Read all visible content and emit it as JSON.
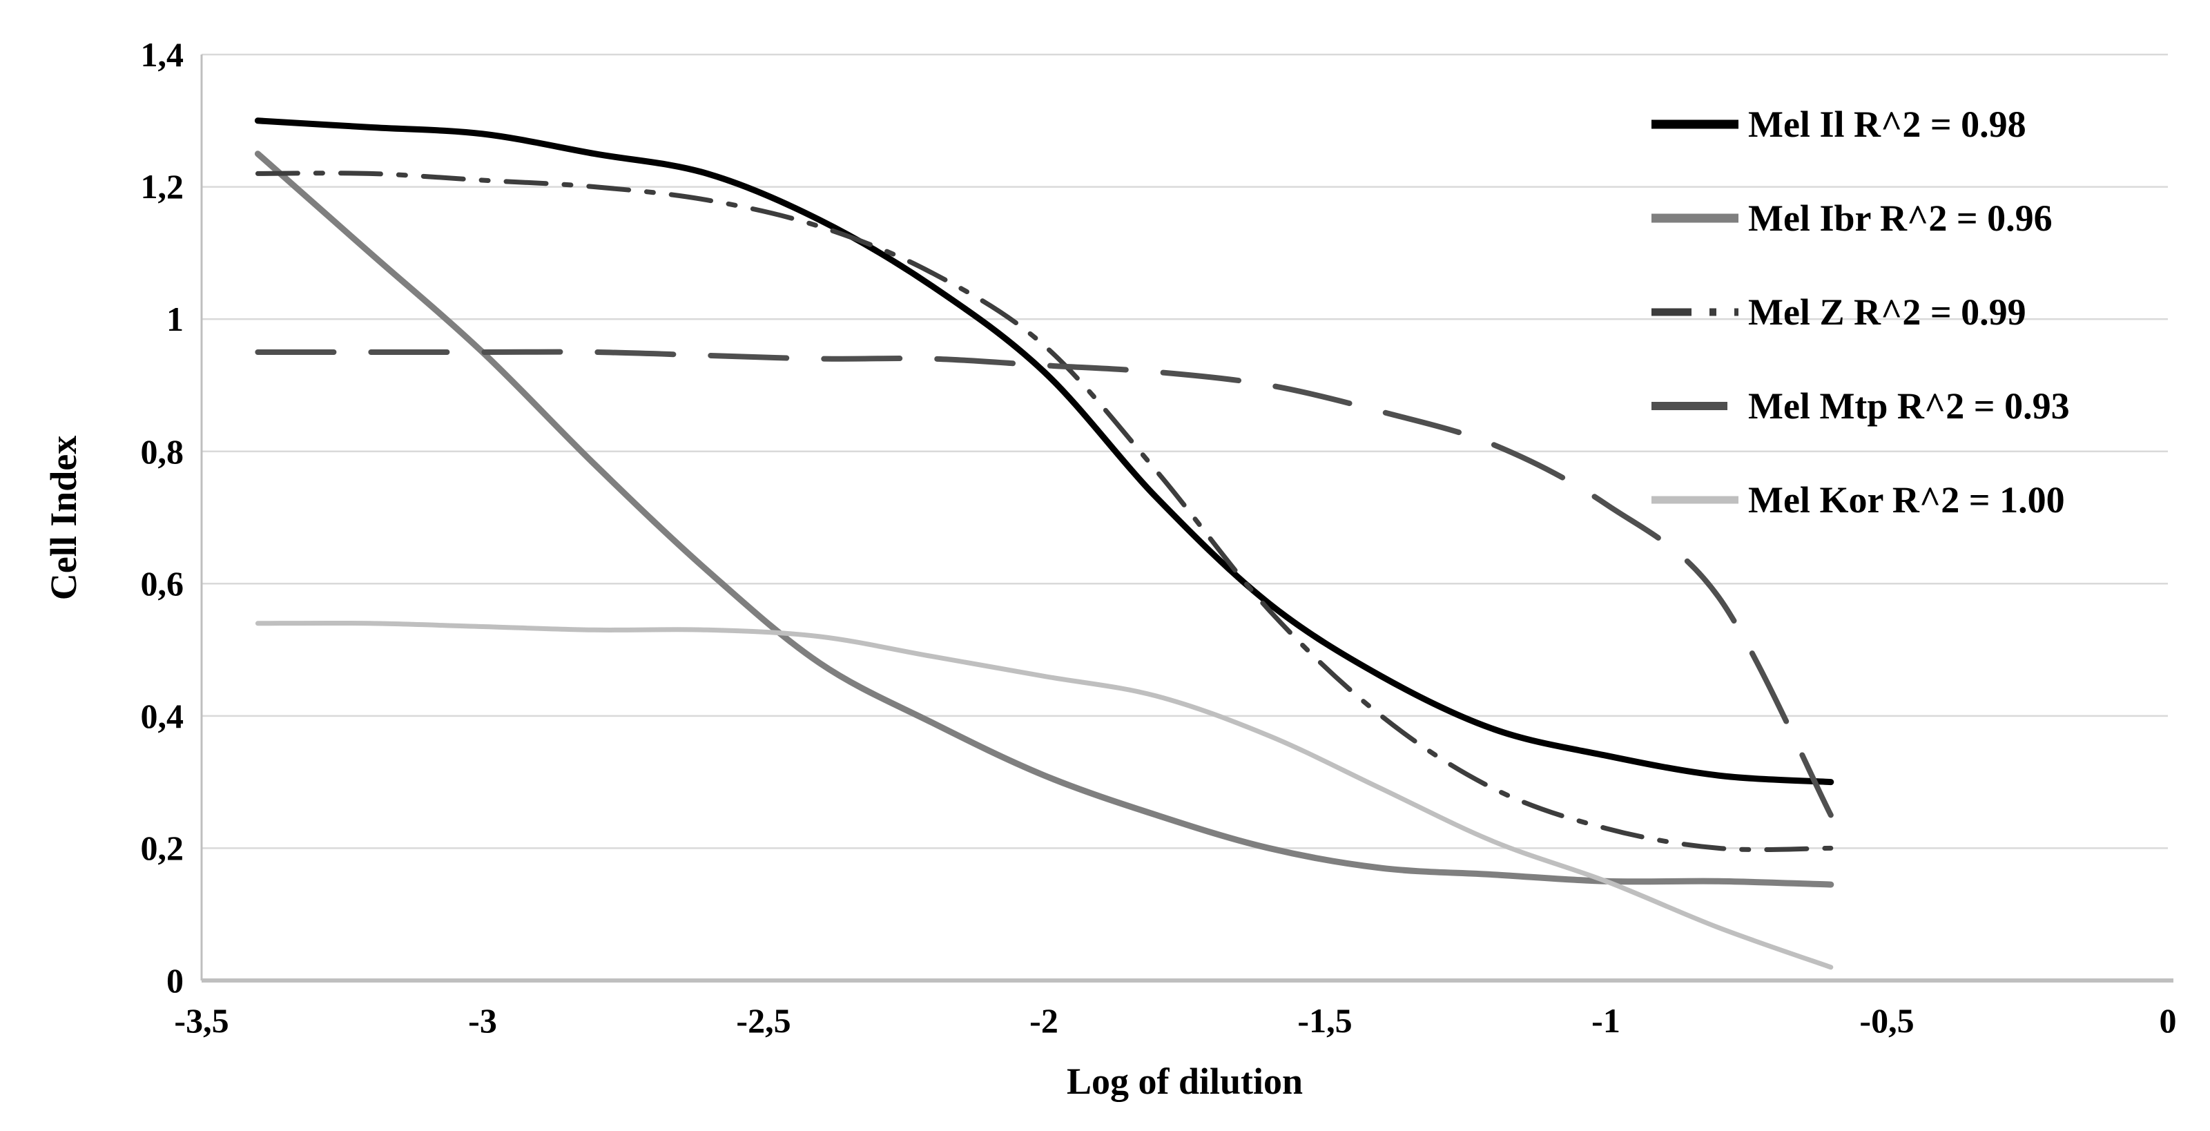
{
  "figure": {
    "background": "#ffffff",
    "text_color": "#000000"
  },
  "axes": {
    "x_label": "Log of dilution",
    "y_label": "Cell Index",
    "x_ticks": [
      "-3,5",
      "-3",
      "-2,5",
      "-2",
      "-1,5",
      "-1",
      "-0,5",
      "0"
    ],
    "x_tick_values": [
      -3.5,
      -3,
      -2.5,
      -2,
      -1.5,
      -1,
      -0.5,
      0
    ],
    "y_ticks": [
      "1,4",
      "1,2",
      "1",
      "0,8",
      "0,6",
      "0,4",
      "0,2",
      "0"
    ],
    "y_tick_values": [
      1.4,
      1.2,
      1,
      0.8,
      0.6,
      0.4,
      0.2,
      0
    ],
    "grid_color": "#d9d9d9",
    "axis_color": "#bfbfbf"
  },
  "chart_data": {
    "type": "line",
    "title": "",
    "xlabel": "Log of dilution",
    "ylabel": "Cell Index",
    "xlim": [
      -3.5,
      0
    ],
    "ylim": [
      0,
      1.4
    ],
    "grid": "horizontal-only",
    "legend_position": "top-right",
    "x": [
      -3.4,
      -3.2,
      -3.0,
      -2.8,
      -2.6,
      -2.4,
      -2.2,
      -2.0,
      -1.8,
      -1.6,
      -1.4,
      -1.2,
      -1.0,
      -0.8,
      -0.6
    ],
    "series": [
      {
        "name": "Mel Il R^2 = 0.98",
        "color": "#000000",
        "width": 9,
        "dash": "none",
        "values": [
          1.3,
          1.29,
          1.28,
          1.25,
          1.22,
          1.15,
          1.05,
          0.92,
          0.73,
          0.57,
          0.46,
          0.38,
          0.34,
          0.31,
          0.3
        ]
      },
      {
        "name": "Mel Ibr R^2 = 0.96",
        "color": "#7f7f7f",
        "width": 9,
        "dash": "none",
        "values": [
          1.25,
          1.1,
          0.95,
          0.78,
          0.62,
          0.48,
          0.39,
          0.31,
          0.25,
          0.2,
          0.17,
          0.16,
          0.15,
          0.15,
          0.145
        ]
      },
      {
        "name": "Mel Z R^2 = 0.99",
        "color": "#3d3d3d",
        "width": 7,
        "dash": "58 26 10 26",
        "values": [
          1.22,
          1.22,
          1.21,
          1.2,
          1.18,
          1.14,
          1.07,
          0.96,
          0.77,
          0.56,
          0.4,
          0.29,
          0.23,
          0.2,
          0.2
        ]
      },
      {
        "name": "Mel Mtp R^2 = 0.93",
        "color": "#4f4f4f",
        "width": 8,
        "dash": "110 54",
        "values": [
          0.95,
          0.95,
          0.95,
          0.95,
          0.945,
          0.94,
          0.94,
          0.93,
          0.92,
          0.9,
          0.86,
          0.81,
          0.72,
          0.58,
          0.25
        ]
      },
      {
        "name": "Mel Kor R^2 = 1.00",
        "color": "#bfbfbf",
        "width": 7,
        "dash": "none",
        "values": [
          0.54,
          0.54,
          0.535,
          0.53,
          0.53,
          0.52,
          0.49,
          0.46,
          0.43,
          0.37,
          0.29,
          0.21,
          0.15,
          0.08,
          0.02
        ]
      }
    ]
  }
}
